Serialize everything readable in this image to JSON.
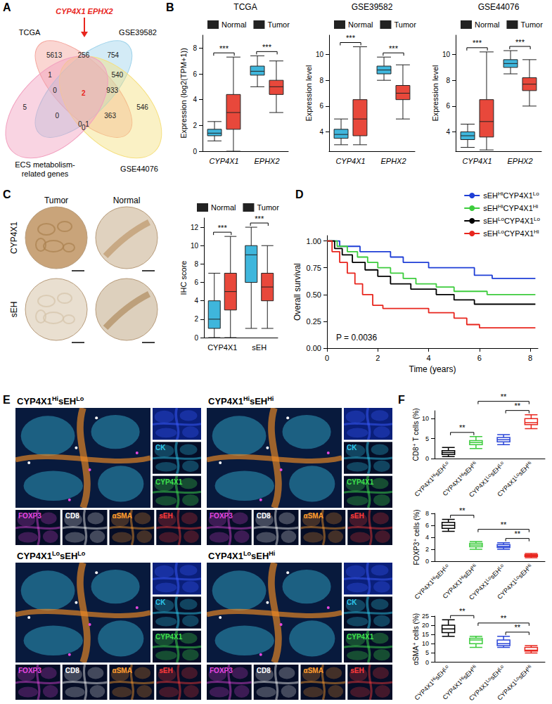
{
  "chart_data": [
    {
      "panel": "A",
      "type": "venn",
      "title": "CYP4X1 EPHX2",
      "sets": [
        {
          "name": "TCGA",
          "color": "#f4a49c"
        },
        {
          "name": "GSE39582",
          "color": "#9dd2ea"
        },
        {
          "name": "GSE44076",
          "color": "#f5df7e"
        },
        {
          "name": "ECS metabolism-related genes",
          "color": "#f2a0bf"
        }
      ],
      "regions": [
        {
          "sets": [
            0
          ],
          "value": 5613
        },
        {
          "sets": [
            1
          ],
          "value": 754
        },
        {
          "sets": [
            2
          ],
          "value": 546
        },
        {
          "sets": [
            3
          ],
          "value": 5
        },
        {
          "sets": [
            0,
            1
          ],
          "value": 256
        },
        {
          "sets": [
            0,
            3
          ],
          "value": 1
        },
        {
          "sets": [
            1,
            2
          ],
          "value": 540
        },
        {
          "sets": [
            0,
            1,
            3
          ],
          "value": 0
        },
        {
          "sets": [
            0,
            1,
            2
          ],
          "value": 933
        },
        {
          "sets": [
            0,
            1,
            2,
            3
          ],
          "value": 2,
          "color": "#e8261e"
        },
        {
          "sets": [
            0,
            2
          ],
          "value": 363
        },
        {
          "sets": [
            1,
            3
          ],
          "value": 0
        },
        {
          "sets": [
            0,
            2,
            3
          ],
          "value": 1
        },
        {
          "sets": [
            1,
            2,
            3
          ],
          "value": 0
        },
        {
          "sets": [
            2,
            3
          ],
          "value": 0
        }
      ]
    },
    {
      "panel": "B",
      "type": "boxplot",
      "title": "TCGA",
      "ylabel": "Expression (log2(TPM+1))",
      "categories": [
        "CYP4X1",
        "EPHX2"
      ],
      "series": [
        {
          "name": "Normal",
          "color": "#3fb6dc",
          "values": [
            [
              0.8,
              1.2,
              1.4,
              1.7,
              2.3
            ],
            [
              5,
              5.9,
              6.2,
              6.6,
              7.4
            ]
          ]
        },
        {
          "name": "Tumor",
          "color": "#e8483b",
          "values": [
            [
              0,
              1.7,
              3,
              4.4,
              7.3
            ],
            [
              3,
              4.4,
              5,
              5.5,
              7
            ]
          ]
        }
      ],
      "ylim": [
        0,
        9
      ],
      "yticks": [
        0,
        2,
        4,
        6,
        8
      ],
      "significance": [
        {
          "category": 0,
          "label": "***"
        },
        {
          "category": 1,
          "label": "***"
        }
      ],
      "legend": "top"
    },
    {
      "type": "boxplot",
      "title": "GSE39582",
      "ylabel": "Expression level",
      "categories": [
        "CYP4X1",
        "EPHX2"
      ],
      "series": [
        {
          "name": "Normal",
          "color": "#3fb6dc",
          "values": [
            [
              3,
              3.5,
              3.8,
              4.2,
              5
            ],
            [
              8,
              8.5,
              8.8,
              9.1,
              9.8
            ]
          ]
        },
        {
          "name": "Tumor",
          "color": "#e8483b",
          "values": [
            [
              3,
              3.7,
              5,
              6.5,
              10.6
            ],
            [
              5,
              6.5,
              7,
              7.6,
              9.2
            ]
          ]
        }
      ],
      "ylim": [
        2.5,
        11.5
      ],
      "yticks": [
        4,
        6,
        8,
        10
      ],
      "significance": [
        {
          "category": 0,
          "label": "***"
        },
        {
          "category": 1,
          "label": "***"
        }
      ],
      "legend": "top"
    },
    {
      "type": "boxplot",
      "title": "GSE44076",
      "ylabel": "Expression level",
      "categories": [
        "CYP4X1",
        "EPHX2"
      ],
      "series": [
        {
          "name": "Normal",
          "color": "#3fb6dc",
          "values": [
            [
              2.8,
              3.4,
              3.7,
              4,
              4.6
            ],
            [
              8.5,
              9,
              9.3,
              9.6,
              10.3
            ]
          ]
        },
        {
          "name": "Tumor",
          "color": "#e8483b",
          "values": [
            [
              2.6,
              3.6,
              4.8,
              6.5,
              10.2
            ],
            [
              6,
              7.2,
              7.7,
              8.2,
              9.6
            ]
          ]
        }
      ],
      "ylim": [
        2.5,
        11.5
      ],
      "yticks": [
        4,
        6,
        8,
        10
      ],
      "significance": [
        {
          "category": 0,
          "label": "***"
        },
        {
          "category": 1,
          "label": "***"
        }
      ],
      "legend": "top"
    },
    {
      "panel": "C",
      "type": "images",
      "columns": [
        "Tumor",
        "Normal"
      ],
      "rows": [
        "CYP4X1",
        "sEH"
      ]
    },
    {
      "type": "boxplot",
      "ylabel": "IHC score",
      "categories": [
        "CYP4X1",
        "sEH"
      ],
      "series": [
        {
          "name": "Normal",
          "color": "#3fb6dc",
          "values": [
            [
              0,
              1,
              2,
              4,
              7
            ],
            [
              1,
              6,
              9,
              10,
              12
            ]
          ]
        },
        {
          "name": "Tumor",
          "color": "#e8483b",
          "values": [
            [
              0,
              3,
              5,
              7,
              11
            ],
            [
              1,
              4,
              5.5,
              7,
              10
            ]
          ]
        }
      ],
      "ylim": [
        0,
        13
      ],
      "yticks": [
        0,
        2,
        4,
        6,
        8,
        10,
        12
      ],
      "significance": [
        {
          "category": 0,
          "label": "***"
        },
        {
          "category": 1,
          "label": "***"
        }
      ],
      "legend": "top"
    },
    {
      "panel": "D",
      "type": "step",
      "xlabel": "Time (years)",
      "ylabel": "Overall survival",
      "xlim": [
        0,
        8.3
      ],
      "xticks": [
        0,
        2,
        4,
        6,
        8
      ],
      "ylim": [
        0,
        1.05
      ],
      "yticks": [
        {
          "value": 0,
          "label": "0.00"
        },
        {
          "value": 0.25,
          "label": "0.25"
        },
        {
          "value": 0.5,
          "label": "0.50"
        },
        {
          "value": 0.75,
          "label": "0.75"
        },
        {
          "value": 1,
          "label": "1.00"
        }
      ],
      "annotation": "P = 0.0036",
      "legend": "top-right",
      "series": [
        {
          "name": "sEHHiCYP4X1Lo",
          "color": "#1f3fd6",
          "x": [
            0,
            0.5,
            1.3,
            2.5,
            3,
            4,
            5.8,
            6.5,
            8.2
          ],
          "values": [
            1,
            0.95,
            0.9,
            0.85,
            0.8,
            0.75,
            0.68,
            0.65,
            0.65
          ]
        },
        {
          "name": "sEHHiCYP4X1Hi",
          "color": "#3dcc3d",
          "x": [
            0,
            0.4,
            0.8,
            1.2,
            1.6,
            2,
            2.5,
            3,
            3.5,
            4.3,
            5,
            6.3,
            8.2
          ],
          "values": [
            1,
            0.95,
            0.9,
            0.85,
            0.8,
            0.75,
            0.7,
            0.65,
            0.6,
            0.57,
            0.53,
            0.5,
            0.5
          ]
        },
        {
          "name": "sEHLoCYP4X1Lo",
          "color": "#000000",
          "x": [
            0,
            0.3,
            0.6,
            1,
            1.5,
            2,
            2.5,
            3.3,
            4.3,
            5,
            5.8,
            8.2
          ],
          "values": [
            1,
            0.93,
            0.87,
            0.8,
            0.73,
            0.67,
            0.6,
            0.55,
            0.5,
            0.45,
            0.41,
            0.41
          ]
        },
        {
          "name": "sEHLoCYP4X1Hi",
          "color": "#e8261e",
          "x": [
            0,
            0.2,
            0.5,
            0.8,
            1.1,
            1.4,
            1.8,
            2.2,
            4,
            5,
            5.5,
            6,
            8.2
          ],
          "values": [
            1,
            0.9,
            0.8,
            0.7,
            0.6,
            0.5,
            0.4,
            0.37,
            0.33,
            0.28,
            0.22,
            0.19,
            0.19
          ]
        }
      ]
    },
    {
      "panel": "E",
      "type": "images",
      "titles": [
        "CYP4X1HisEHLo",
        "CYP4X1HisEHHi",
        "CYP4X1LosEHLo",
        "CYP4X1LosEHHi"
      ],
      "side_channels": [
        {
          "name": "CK",
          "color": "#2ec5e8"
        },
        {
          "name": "CYP4X1",
          "color": "#3ee04e"
        }
      ],
      "bottom_channels": [
        {
          "name": "FOXP3",
          "color": "#e547e0"
        },
        {
          "name": "CD8",
          "color": "#ffffff"
        },
        {
          "name": "αSMA",
          "color": "#ff9d2e"
        },
        {
          "name": "sEH",
          "color": "#ff3b3b"
        }
      ]
    },
    {
      "panel": "F",
      "type": "boxplot",
      "ylabel": "CD8⁺ T cells (%)",
      "categories": [
        "CYP4X1HisEHLo",
        "CYP4X1HisEHHi",
        "CYP4X1LosEHLo",
        "CYP4X1LosEHHi"
      ],
      "values": [
        [
          0.5,
          1,
          1.5,
          2,
          2.8
        ],
        [
          2.5,
          3.5,
          4,
          4.5,
          5.5
        ],
        [
          3.5,
          4.2,
          4.7,
          5.3,
          6
        ],
        [
          7.5,
          8.5,
          9,
          10,
          11
        ]
      ],
      "colors": [
        "#000000",
        "#3dcc3d",
        "#2b46d8",
        "#e8261e"
      ],
      "ylim": [
        0,
        12
      ],
      "yticks": [
        0,
        5,
        10
      ],
      "significance": [
        {
          "pair": [
            0,
            1
          ],
          "label": "**"
        },
        {
          "pair": [
            1,
            3
          ],
          "label": "**"
        },
        {
          "pair": [
            2,
            3
          ],
          "label": "**"
        }
      ]
    },
    {
      "type": "boxplot",
      "ylabel": "FOXP3⁺ cells (%)",
      "categories": [
        "CYP4X1HisEHLo",
        "CYP4X1HisEHHi",
        "CYP4X1LosEHLo",
        "CYP4X1LosEHHi"
      ],
      "values": [
        [
          5,
          5.5,
          6,
          6.5,
          7
        ],
        [
          2,
          2.4,
          2.7,
          3,
          3.3
        ],
        [
          2,
          2.3,
          2.5,
          2.8,
          3.1
        ],
        [
          0.6,
          0.8,
          0.9,
          1.1,
          1.3
        ]
      ],
      "colors": [
        "#000000",
        "#3dcc3d",
        "#2b46d8",
        "#e8261e"
      ],
      "ylim": [
        0,
        8
      ],
      "yticks": [
        0,
        2,
        4,
        6,
        8
      ],
      "significance": [
        {
          "pair": [
            0,
            1
          ],
          "label": "**"
        },
        {
          "pair": [
            1,
            3
          ],
          "label": "**"
        },
        {
          "pair": [
            2,
            3
          ],
          "label": "**"
        }
      ]
    },
    {
      "type": "boxplot",
      "ylabel": "αSMA⁺ cells (%)",
      "categories": [
        "CYP4X1HisEHLo",
        "CYP4X1HisEHHi",
        "CYP4X1LosEHLo",
        "CYP4X1LosEHHi"
      ],
      "values": [
        [
          14,
          16,
          18,
          20,
          23
        ],
        [
          8,
          10,
          12,
          13,
          14
        ],
        [
          8,
          9,
          10,
          12,
          14
        ],
        [
          5,
          6,
          6.5,
          8,
          9
        ]
      ],
      "colors": [
        "#000000",
        "#3dcc3d",
        "#2b46d8",
        "#e8261e"
      ],
      "ylim": [
        0,
        25
      ],
      "yticks": [
        0,
        5,
        10,
        15,
        20,
        25
      ],
      "significance": [
        {
          "pair": [
            0,
            1
          ],
          "label": "**"
        },
        {
          "pair": [
            1,
            3
          ],
          "label": "**"
        },
        {
          "pair": [
            2,
            3
          ],
          "label": "**"
        }
      ]
    }
  ]
}
